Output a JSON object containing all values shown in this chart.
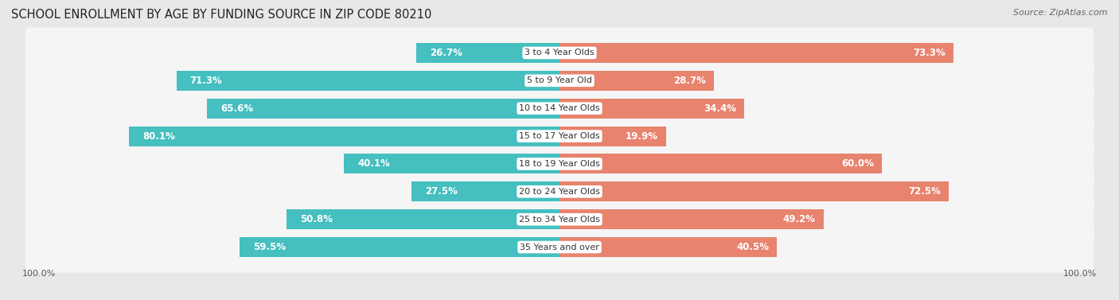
{
  "title": "SCHOOL ENROLLMENT BY AGE BY FUNDING SOURCE IN ZIP CODE 80210",
  "source": "Source: ZipAtlas.com",
  "categories": [
    "3 to 4 Year Olds",
    "5 to 9 Year Old",
    "10 to 14 Year Olds",
    "15 to 17 Year Olds",
    "18 to 19 Year Olds",
    "20 to 24 Year Olds",
    "25 to 34 Year Olds",
    "35 Years and over"
  ],
  "public_pct": [
    26.7,
    71.3,
    65.6,
    80.1,
    40.1,
    27.5,
    50.8,
    59.5
  ],
  "private_pct": [
    73.3,
    28.7,
    34.4,
    19.9,
    60.0,
    72.5,
    49.2,
    40.5
  ],
  "public_color": "#45BFC0",
  "private_color": "#E8836E",
  "bg_color": "#e8e8e8",
  "row_bg_color": "#f5f5f5",
  "title_fontsize": 10.5,
  "label_fontsize": 8.5,
  "source_fontsize": 8,
  "axis_label_fontsize": 8,
  "inside_label_threshold": 15
}
